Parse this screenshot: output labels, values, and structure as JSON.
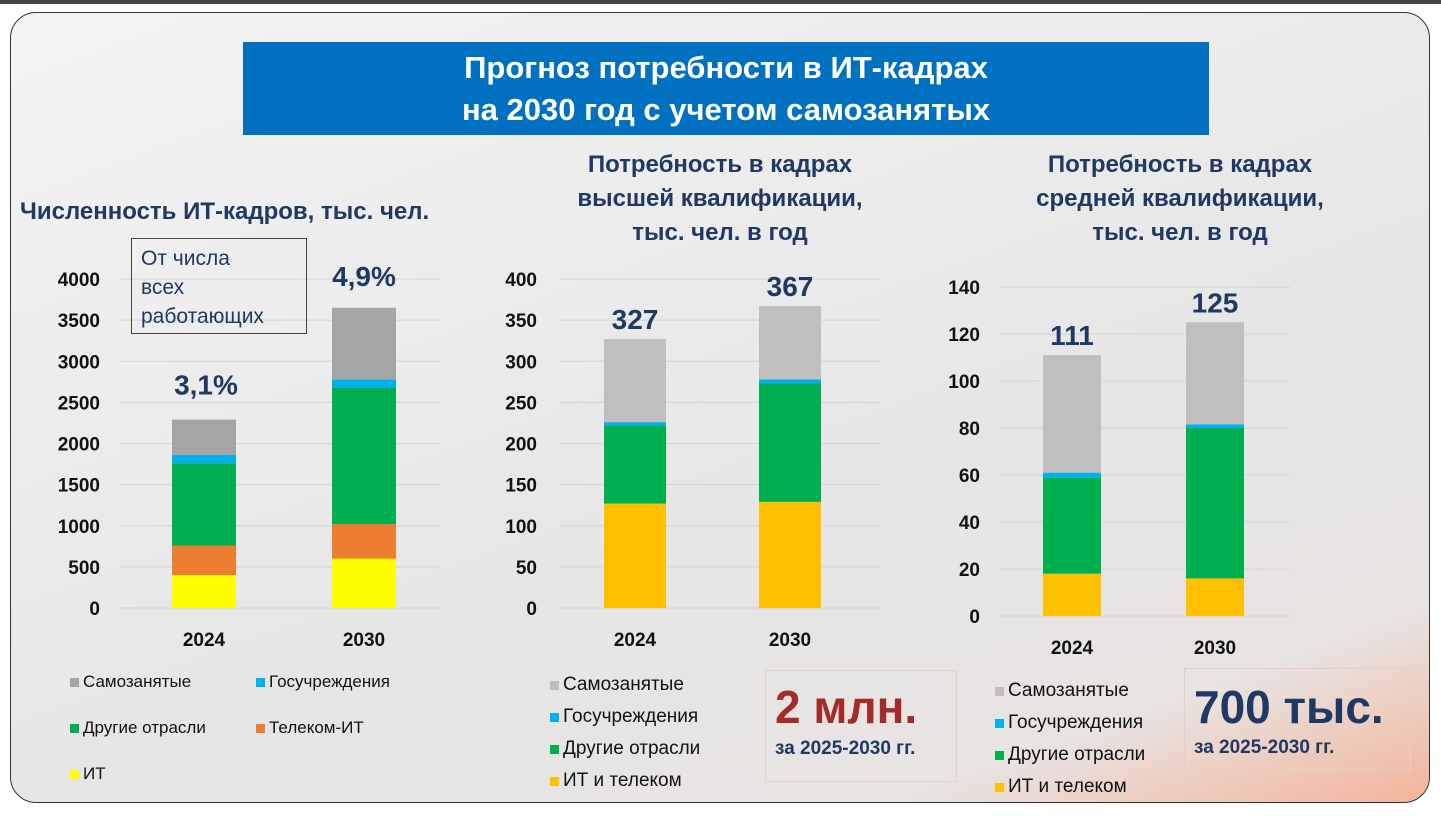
{
  "title": {
    "line1": "Прогноз потребности в ИТ-кадрах",
    "line2": "на 2030 год с учетом самозанятых"
  },
  "colors": {
    "Самозанятые": "#A5A5A5",
    "Самозанятые_light": "#BFBFBF",
    "Госучреждения": "#00B0F0",
    "Другие отрасли": "#00B050",
    "Телеком-ИТ": "#ED7D31",
    "ИТ": "#FFFF00",
    "ИТ и телеком": "#FFC000",
    "label": "#1F3864",
    "title_bg": "#0070C0"
  },
  "note": {
    "line1": "От числа",
    "line2": "всех",
    "line3": "работающих"
  },
  "callout1": {
    "value": "2 млн.",
    "period": "за 2025-2030 гг."
  },
  "callout2": {
    "value": "700 тыс.",
    "period": "за 2025-2030 гг."
  },
  "chart_data": [
    {
      "type": "bar",
      "stacked": true,
      "title": "Численность ИТ-кадров, тыс. чел.",
      "categories": [
        "2024",
        "2030"
      ],
      "ylim": [
        0,
        4000
      ],
      "yticks": [
        0,
        500,
        1000,
        1500,
        2000,
        2500,
        3000,
        3500,
        4000
      ],
      "grid": true,
      "legend": "bottom",
      "series": [
        {
          "name": "ИТ",
          "values": [
            400,
            600
          ]
        },
        {
          "name": "Телеком-ИТ",
          "values": [
            360,
            420
          ]
        },
        {
          "name": "Другие отрасли",
          "values": [
            1000,
            1660
          ]
        },
        {
          "name": "Госучреждения",
          "values": [
            100,
            100
          ]
        },
        {
          "name": "Самозанятые",
          "values": [
            430,
            870
          ]
        }
      ],
      "legend_order": [
        "Самозанятые",
        "Госучреждения",
        "Другие отрасли",
        "Телеком-ИТ",
        "ИТ"
      ],
      "data_labels": [
        "3,1%",
        "4,9%"
      ]
    },
    {
      "type": "bar",
      "stacked": true,
      "title": "Потребность в кадрах высшей квалификации, тыс. чел. в год",
      "title_lines": [
        "Потребность в кадрах",
        "высшей квалификации,",
        "тыс. чел. в год"
      ],
      "categories": [
        "2024",
        "2030"
      ],
      "ylim": [
        0,
        400
      ],
      "yticks": [
        0,
        50,
        100,
        150,
        200,
        250,
        300,
        350,
        400
      ],
      "grid": true,
      "legend": "bottom",
      "series": [
        {
          "name": "ИТ и телеком",
          "values": [
            127,
            129
          ]
        },
        {
          "name": "Другие отрасли",
          "values": [
            95,
            144
          ]
        },
        {
          "name": "Госучреждения",
          "values": [
            4,
            5
          ]
        },
        {
          "name": "Самозанятые",
          "values": [
            101,
            89
          ]
        }
      ],
      "legend_order": [
        "Самозанятые",
        "Госучреждения",
        "Другие отрасли",
        "ИТ и телеком"
      ],
      "data_labels": [
        "327",
        "367"
      ]
    },
    {
      "type": "bar",
      "stacked": true,
      "title": "Потребность в кадрах средней квалификации, тыс. чел. в год",
      "title_lines": [
        "Потребность в кадрах",
        "средней квалификации,",
        "тыс. чел. в год"
      ],
      "categories": [
        "2024",
        "2030"
      ],
      "ylim": [
        0,
        140
      ],
      "yticks": [
        0,
        20,
        40,
        60,
        80,
        100,
        120,
        140
      ],
      "grid": true,
      "legend": "bottom",
      "series": [
        {
          "name": "ИТ и телеком",
          "values": [
            18,
            16
          ]
        },
        {
          "name": "Другие отрасли",
          "values": [
            41,
            64
          ]
        },
        {
          "name": "Госучреждения",
          "values": [
            2,
            1.5
          ]
        },
        {
          "name": "Самозанятые",
          "values": [
            50,
            43.5
          ]
        }
      ],
      "legend_order": [
        "Самозанятые",
        "Госучреждения",
        "Другие отрасли",
        "ИТ и телеком"
      ],
      "data_labels": [
        "111",
        "125"
      ]
    }
  ]
}
